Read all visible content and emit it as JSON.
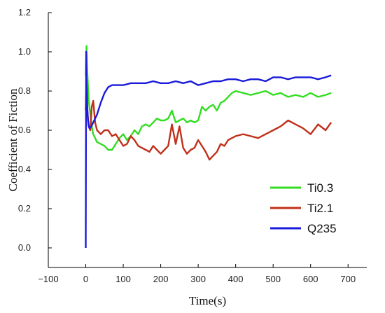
{
  "chart_data": {
    "type": "line",
    "title": "",
    "xlabel": "Time(s)",
    "ylabel": "Coefficient of Fiction",
    "xlim": [
      -100,
      750
    ],
    "ylim": [
      -0.1,
      1.2
    ],
    "xticks": [
      -100,
      0,
      100,
      200,
      300,
      400,
      500,
      600,
      700
    ],
    "xtick_labels": [
      "−100",
      "0",
      "100",
      "200",
      "300",
      "400",
      "500",
      "600",
      "700"
    ],
    "yticks": [
      0.0,
      0.2,
      0.4,
      0.6,
      0.8,
      1.0,
      1.2
    ],
    "ytick_labels": [
      "0.0",
      "0.2",
      "0.4",
      "0.6",
      "0.8",
      "1.0",
      "1.2"
    ],
    "grid": false,
    "legend_position": "bottom-right",
    "series": [
      {
        "name": "Ti0.3",
        "color": "#33dd22",
        "x": [
          0,
          2,
          4,
          8,
          12,
          16,
          20,
          25,
          30,
          40,
          50,
          60,
          70,
          80,
          90,
          100,
          110,
          120,
          130,
          140,
          150,
          160,
          170,
          180,
          190,
          200,
          210,
          220,
          230,
          240,
          250,
          260,
          270,
          280,
          290,
          300,
          310,
          320,
          330,
          340,
          350,
          360,
          370,
          380,
          390,
          400,
          420,
          440,
          460,
          480,
          500,
          520,
          540,
          560,
          580,
          600,
          620,
          640,
          655
        ],
        "y": [
          0.88,
          1.03,
          0.9,
          0.75,
          0.68,
          0.62,
          0.58,
          0.56,
          0.54,
          0.53,
          0.52,
          0.5,
          0.5,
          0.53,
          0.56,
          0.58,
          0.55,
          0.57,
          0.6,
          0.58,
          0.62,
          0.63,
          0.62,
          0.64,
          0.66,
          0.65,
          0.65,
          0.66,
          0.7,
          0.64,
          0.65,
          0.66,
          0.64,
          0.65,
          0.64,
          0.65,
          0.72,
          0.7,
          0.72,
          0.73,
          0.7,
          0.74,
          0.75,
          0.77,
          0.79,
          0.8,
          0.79,
          0.78,
          0.79,
          0.8,
          0.78,
          0.79,
          0.77,
          0.78,
          0.77,
          0.79,
          0.77,
          0.78,
          0.79
        ]
      },
      {
        "name": "Ti2.1",
        "color": "#c0301a",
        "x": [
          0,
          2,
          4,
          8,
          12,
          16,
          20,
          25,
          30,
          40,
          50,
          60,
          70,
          80,
          90,
          100,
          110,
          120,
          130,
          140,
          150,
          160,
          170,
          180,
          190,
          200,
          210,
          220,
          230,
          240,
          250,
          260,
          270,
          280,
          290,
          300,
          310,
          320,
          330,
          340,
          350,
          360,
          370,
          380,
          390,
          400,
          420,
          440,
          460,
          480,
          500,
          520,
          540,
          560,
          580,
          600,
          620,
          640,
          655
        ],
        "y": [
          0.7,
          0.85,
          0.7,
          0.62,
          0.6,
          0.72,
          0.75,
          0.64,
          0.6,
          0.58,
          0.6,
          0.6,
          0.57,
          0.58,
          0.55,
          0.52,
          0.53,
          0.57,
          0.55,
          0.52,
          0.51,
          0.5,
          0.49,
          0.52,
          0.5,
          0.48,
          0.5,
          0.52,
          0.63,
          0.53,
          0.62,
          0.51,
          0.48,
          0.5,
          0.51,
          0.55,
          0.52,
          0.49,
          0.45,
          0.47,
          0.49,
          0.53,
          0.52,
          0.55,
          0.56,
          0.57,
          0.58,
          0.57,
          0.56,
          0.58,
          0.6,
          0.62,
          0.65,
          0.63,
          0.61,
          0.58,
          0.63,
          0.6,
          0.64
        ]
      },
      {
        "name": "Q235",
        "color": "#1a1adb",
        "x": [
          0,
          1,
          2,
          4,
          6,
          8,
          10,
          15,
          20,
          30,
          40,
          50,
          60,
          70,
          80,
          100,
          120,
          140,
          160,
          180,
          200,
          220,
          240,
          260,
          280,
          300,
          320,
          340,
          360,
          380,
          400,
          420,
          440,
          460,
          480,
          500,
          520,
          540,
          560,
          580,
          600,
          620,
          640,
          655
        ],
        "y": [
          0.0,
          1.0,
          0.85,
          0.72,
          0.65,
          0.62,
          0.61,
          0.62,
          0.64,
          0.68,
          0.74,
          0.79,
          0.82,
          0.83,
          0.83,
          0.83,
          0.84,
          0.84,
          0.84,
          0.85,
          0.84,
          0.84,
          0.85,
          0.84,
          0.85,
          0.83,
          0.84,
          0.85,
          0.85,
          0.86,
          0.86,
          0.85,
          0.86,
          0.86,
          0.85,
          0.87,
          0.87,
          0.86,
          0.87,
          0.87,
          0.87,
          0.86,
          0.87,
          0.88
        ]
      }
    ]
  }
}
